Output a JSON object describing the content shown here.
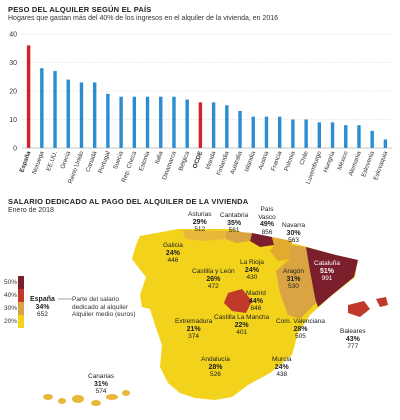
{
  "header": {
    "title": "PESO DEL ALQUILER SEGÚN EL PAÍS",
    "subtitle": "Hogares que gastan más del 40% de los ingresos en el alquiler de la vivienda, en 2016"
  },
  "chart_data": [
    {
      "type": "bar",
      "categories": [
        "España",
        "Noruega",
        "EE.UU.",
        "Grecia",
        "Reino Unido",
        "Canadá",
        "Portugal",
        "Suecia",
        "Rep. Checa",
        "Estonia",
        "Italia",
        "Dinamarca",
        "Bélgica",
        "OCDE",
        "Irlanda",
        "Finlandia",
        "Australia",
        "Islandia",
        "Austria",
        "Francia",
        "Polonia",
        "Chile",
        "Luxemburgo",
        "Hungría",
        "México",
        "Alemania",
        "Eslovenia",
        "Eslovaquia"
      ],
      "values": [
        36,
        28,
        27,
        24,
        23,
        23,
        19,
        18,
        18,
        18,
        18,
        18,
        17,
        16,
        16,
        15,
        13,
        11,
        11,
        11,
        10,
        10,
        9,
        9,
        8,
        8,
        6,
        3
      ],
      "highlight": [
        "España",
        "OCDE"
      ],
      "ylim": [
        0,
        40
      ],
      "yticks": [
        0,
        10,
        20,
        30,
        40
      ],
      "grid": true,
      "colors": {
        "default": "#2a8dd1",
        "highlight": "#d42027"
      }
    },
    {
      "type": "choropleth-map",
      "title": "SALARIO DEDICADO AL PAGO DEL ALQUILER DE LA VIVIENDA",
      "subtitle": "Enero de 2018",
      "regions": [
        {
          "name": "Galicia",
          "pct": "24%",
          "rent": "446"
        },
        {
          "name": "Asturias",
          "pct": "29%",
          "rent": "512"
        },
        {
          "name": "Cantabria",
          "pct": "35%",
          "rent": "561"
        },
        {
          "name": "País Vasco",
          "pct": "49%",
          "rent": "856"
        },
        {
          "name": "Navarra",
          "pct": "30%",
          "rent": "563"
        },
        {
          "name": "Castilla y León",
          "pct": "26%",
          "rent": "472"
        },
        {
          "name": "La Rioja",
          "pct": "24%",
          "rent": "430"
        },
        {
          "name": "Aragón",
          "pct": "31%",
          "rent": "530"
        },
        {
          "name": "Cataluña",
          "pct": "51%",
          "rent": "991"
        },
        {
          "name": "Madrid",
          "pct": "44%",
          "rent": "846"
        },
        {
          "name": "Extremadura",
          "pct": "21%",
          "rent": "374"
        },
        {
          "name": "Castilla La Mancha",
          "pct": "22%",
          "rent": "401"
        },
        {
          "name": "Com. Valenciana",
          "pct": "28%",
          "rent": "505"
        },
        {
          "name": "Baleares",
          "pct": "43%",
          "rent": "777"
        },
        {
          "name": "Andalucía",
          "pct": "28%",
          "rent": "526"
        },
        {
          "name": "Murcia",
          "pct": "24%",
          "rent": "438"
        },
        {
          "name": "Canarias",
          "pct": "31%",
          "rent": "574"
        }
      ],
      "legend": {
        "scale": [
          "50%",
          "40%",
          "30%",
          "20%"
        ],
        "scale_colors": [
          "#7a1f2b",
          "#c0392b",
          "#d9a441",
          "#f2d21b"
        ],
        "example_name": "España",
        "example_pct": "34%",
        "example_rent": "652",
        "pct_text": "Parte del salario dedicado al alquiler",
        "rent_text": "Alquiler medio (euros)"
      }
    }
  ]
}
